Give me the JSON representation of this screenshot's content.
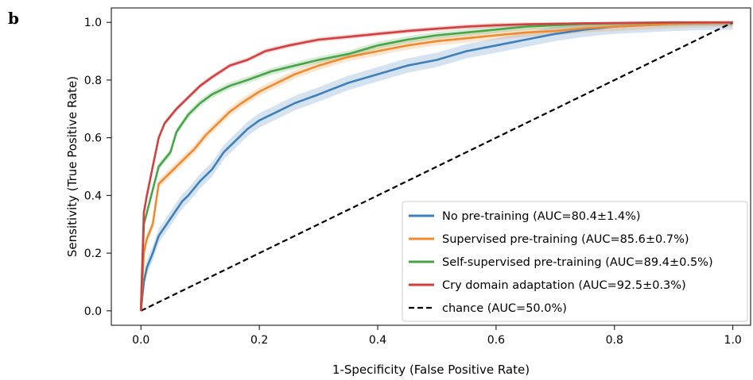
{
  "figure": {
    "panel_label": "b"
  },
  "chart_data": {
    "type": "line",
    "title": "",
    "xlabel": "1-Specificity (False Positive Rate)",
    "ylabel": "Sensitivity (True Positive Rate)",
    "xlim": [
      -0.05,
      1.03
    ],
    "ylim": [
      -0.05,
      1.05
    ],
    "xticks": [
      0.0,
      0.2,
      0.4,
      0.6,
      0.8,
      1.0
    ],
    "xtick_labels": [
      "0.0",
      "0.2",
      "0.4",
      "0.6",
      "0.8",
      "1.0"
    ],
    "yticks": [
      0.0,
      0.2,
      0.4,
      0.6,
      0.8,
      1.0
    ],
    "ytick_labels": [
      "0.0",
      "0.2",
      "0.4",
      "0.6",
      "0.8",
      "1.0"
    ],
    "grid": false,
    "legend_position": "lower-right",
    "series": [
      {
        "name": "No pre-training (AUC=80.4±1.4%)",
        "color": "#3f7fba",
        "band": 0.025,
        "x": [
          0,
          0.005,
          0.01,
          0.02,
          0.03,
          0.05,
          0.07,
          0.08,
          0.1,
          0.12,
          0.14,
          0.16,
          0.18,
          0.2,
          0.23,
          0.26,
          0.3,
          0.35,
          0.4,
          0.45,
          0.5,
          0.55,
          0.6,
          0.65,
          0.7,
          0.75,
          0.8,
          0.85,
          0.9,
          0.95,
          1.0
        ],
        "y": [
          0,
          0.1,
          0.15,
          0.2,
          0.26,
          0.32,
          0.38,
          0.4,
          0.45,
          0.49,
          0.55,
          0.59,
          0.63,
          0.66,
          0.69,
          0.72,
          0.75,
          0.79,
          0.82,
          0.85,
          0.87,
          0.9,
          0.92,
          0.94,
          0.96,
          0.975,
          0.985,
          0.99,
          0.995,
          0.998,
          1.0
        ]
      },
      {
        "name": "Supervised pre-training (AUC=85.6±0.7%)",
        "color": "#f08a2c",
        "band": 0.015,
        "x": [
          0,
          0.005,
          0.01,
          0.02,
          0.03,
          0.05,
          0.07,
          0.09,
          0.11,
          0.13,
          0.15,
          0.17,
          0.2,
          0.23,
          0.26,
          0.3,
          0.35,
          0.4,
          0.45,
          0.5,
          0.55,
          0.6,
          0.65,
          0.7,
          0.75,
          0.8,
          0.85,
          0.9,
          0.95,
          1.0
        ],
        "y": [
          0,
          0.2,
          0.25,
          0.3,
          0.44,
          0.48,
          0.52,
          0.56,
          0.61,
          0.65,
          0.69,
          0.72,
          0.76,
          0.79,
          0.82,
          0.85,
          0.88,
          0.9,
          0.92,
          0.935,
          0.945,
          0.955,
          0.965,
          0.97,
          0.98,
          0.985,
          0.99,
          0.995,
          0.998,
          1.0
        ]
      },
      {
        "name": "Self-supervised pre-training (AUC=89.4±0.5%)",
        "color": "#47a548",
        "band": 0.012,
        "x": [
          0,
          0.005,
          0.01,
          0.02,
          0.03,
          0.05,
          0.06,
          0.08,
          0.1,
          0.12,
          0.15,
          0.18,
          0.22,
          0.26,
          0.3,
          0.35,
          0.4,
          0.45,
          0.5,
          0.55,
          0.6,
          0.65,
          0.7,
          0.75,
          0.8,
          0.85,
          0.9,
          0.95,
          1.0
        ],
        "y": [
          0,
          0.3,
          0.34,
          0.42,
          0.5,
          0.55,
          0.62,
          0.68,
          0.72,
          0.75,
          0.78,
          0.8,
          0.83,
          0.85,
          0.87,
          0.89,
          0.92,
          0.94,
          0.955,
          0.965,
          0.975,
          0.985,
          0.99,
          0.995,
          0.997,
          0.998,
          0.999,
          1.0,
          1.0
        ]
      },
      {
        "name": "Cry domain adaptation (AUC=92.5±0.3%)",
        "color": "#d23f3f",
        "band": 0.008,
        "x": [
          0,
          0.005,
          0.01,
          0.02,
          0.03,
          0.04,
          0.06,
          0.08,
          0.1,
          0.12,
          0.15,
          0.18,
          0.21,
          0.25,
          0.3,
          0.35,
          0.4,
          0.45,
          0.5,
          0.55,
          0.6,
          0.65,
          0.7,
          0.75,
          0.8,
          0.85,
          0.9,
          0.95,
          1.0
        ],
        "y": [
          0,
          0.34,
          0.4,
          0.5,
          0.6,
          0.65,
          0.7,
          0.74,
          0.78,
          0.81,
          0.85,
          0.87,
          0.9,
          0.92,
          0.94,
          0.95,
          0.96,
          0.97,
          0.978,
          0.985,
          0.99,
          0.993,
          0.995,
          0.997,
          0.998,
          0.999,
          1.0,
          1.0,
          1.0
        ]
      },
      {
        "name": "chance (AUC=50.0%)",
        "color": "#000000",
        "dashed": true,
        "x": [
          0,
          1
        ],
        "y": [
          0,
          1
        ]
      }
    ]
  }
}
